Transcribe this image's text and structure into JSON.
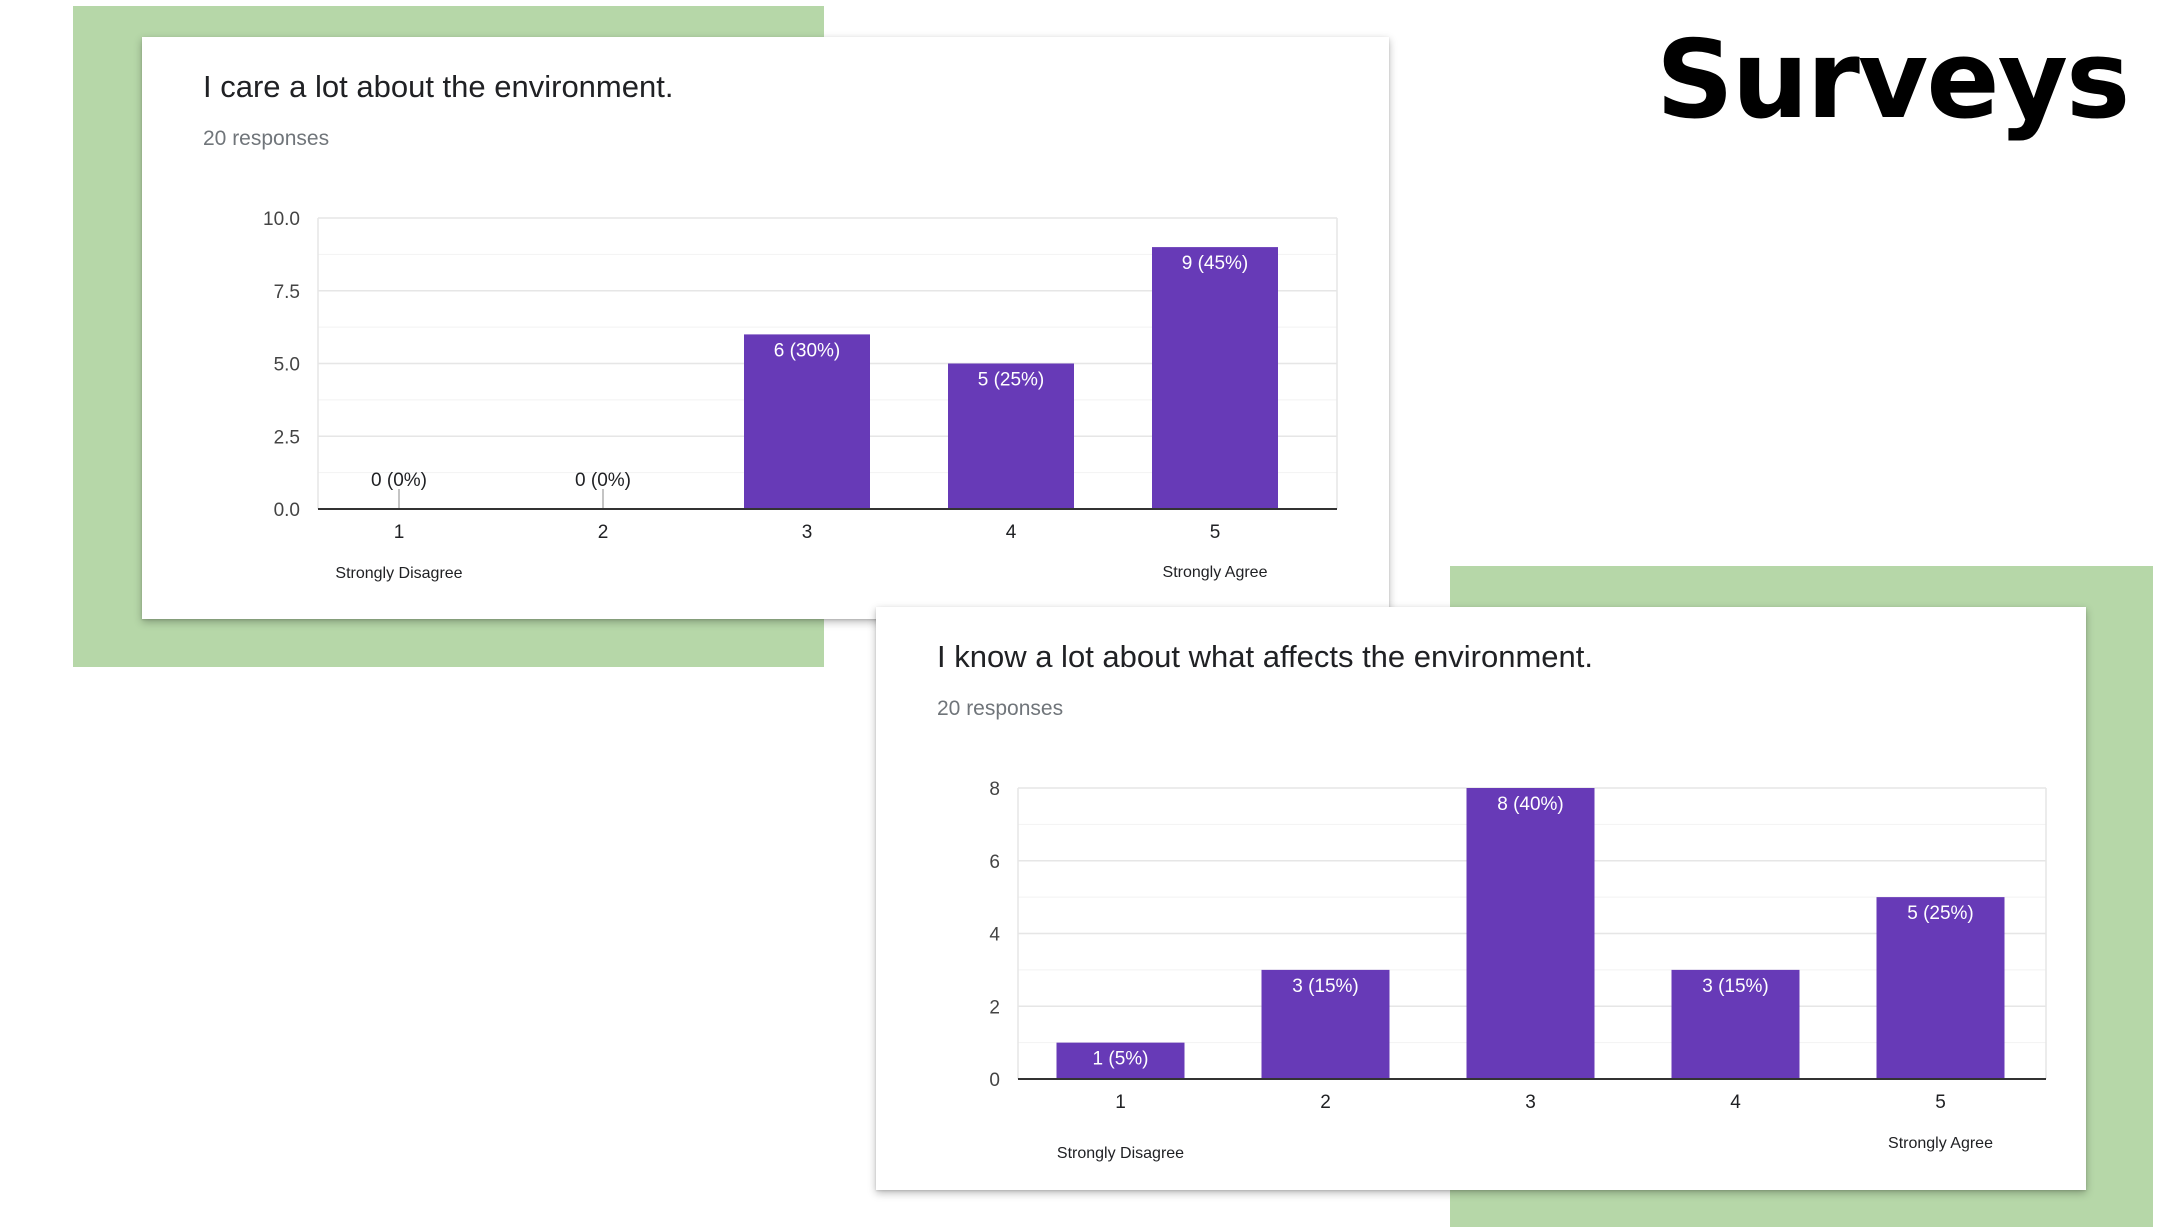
{
  "colors": {
    "accent": "#b6d7a8",
    "bar": "#673ab7",
    "grid": "#e6e6e6",
    "axis": "#333333"
  },
  "page": {
    "title": "Surveys"
  },
  "chart_data": [
    {
      "type": "bar",
      "title": "I care a lot about the environment.",
      "subtitle": "20 responses",
      "categories": [
        "1",
        "2",
        "3",
        "4",
        "5"
      ],
      "values": [
        0,
        0,
        6,
        5,
        9
      ],
      "data_labels": [
        "0 (0%)",
        "0 (0%)",
        "6 (30%)",
        "5 (25%)",
        "9 (45%)"
      ],
      "ylim": [
        0,
        10
      ],
      "yticks": [
        "0.0",
        "2.5",
        "5.0",
        "7.5",
        "10.0"
      ],
      "scale_labels": {
        "low": "Strongly Disagree",
        "high": "Strongly Agree"
      },
      "grid": true
    },
    {
      "type": "bar",
      "title": "I know a lot about what affects the environment.",
      "subtitle": "20 responses",
      "categories": [
        "1",
        "2",
        "3",
        "4",
        "5"
      ],
      "values": [
        1,
        3,
        8,
        3,
        5
      ],
      "data_labels": [
        "1 (5%)",
        "3 (15%)",
        "8 (40%)",
        "3 (15%)",
        "5 (25%)"
      ],
      "ylim": [
        0,
        8
      ],
      "yticks": [
        "0",
        "2",
        "4",
        "6",
        "8"
      ],
      "scale_labels": {
        "low": "Strongly Disagree",
        "high": "Strongly Agree"
      },
      "grid": true
    }
  ]
}
